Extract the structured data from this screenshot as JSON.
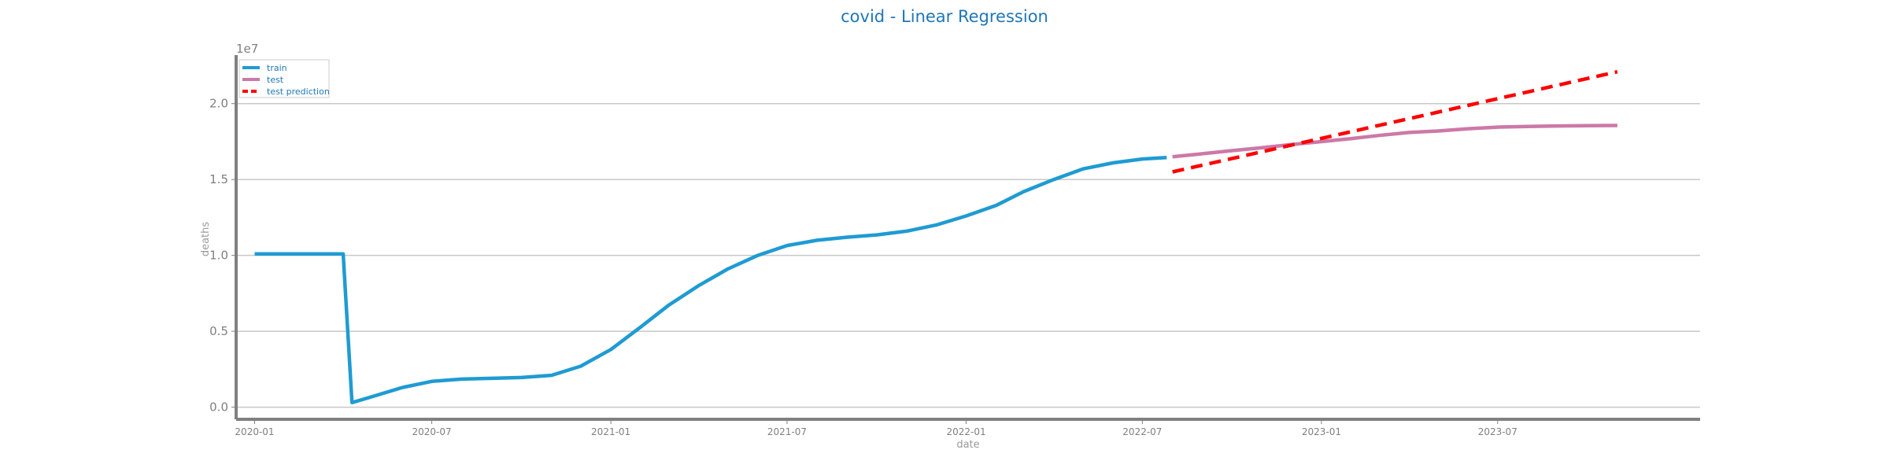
{
  "chart_data": {
    "type": "line",
    "title": "covid - Linear Regression",
    "xlabel": "date",
    "ylabel": "deaths",
    "y_offset_label": "1e7",
    "x_axis_type": "date",
    "xlim": [
      "2019-12-13",
      "2024-01-25"
    ],
    "ylim": [
      -0.08,
      2.32
    ],
    "y_multiplier": 10000000,
    "x_ticks": [
      "2020-01",
      "2020-07",
      "2021-01",
      "2021-07",
      "2022-01",
      "2022-07",
      "2023-01",
      "2023-07"
    ],
    "y_ticks": [
      "0.0",
      "0.5",
      "1.0",
      "1.5",
      "2.0"
    ],
    "y_tick_values": [
      0.0,
      0.5,
      1.0,
      1.5,
      2.0
    ],
    "grid": "horizontal",
    "legend_position": "top-left",
    "series": [
      {
        "name": "train",
        "color": "#1f9bd2",
        "style": "solid",
        "points": [
          [
            "2020-01-01",
            1.01
          ],
          [
            "2020-04-01",
            1.01
          ],
          [
            "2020-04-10",
            0.03
          ],
          [
            "2020-05-01",
            0.07
          ],
          [
            "2020-06-01",
            0.13
          ],
          [
            "2020-07-01",
            0.17
          ],
          [
            "2020-08-01",
            0.185
          ],
          [
            "2020-09-01",
            0.19
          ],
          [
            "2020-10-01",
            0.195
          ],
          [
            "2020-11-01",
            0.21
          ],
          [
            "2020-12-01",
            0.27
          ],
          [
            "2021-01-01",
            0.38
          ],
          [
            "2021-02-01",
            0.53
          ],
          [
            "2021-03-01",
            0.67
          ],
          [
            "2021-04-01",
            0.8
          ],
          [
            "2021-05-01",
            0.91
          ],
          [
            "2021-06-01",
            1.0
          ],
          [
            "2021-07-01",
            1.065
          ],
          [
            "2021-08-01",
            1.1
          ],
          [
            "2021-09-01",
            1.12
          ],
          [
            "2021-10-01",
            1.135
          ],
          [
            "2021-11-01",
            1.16
          ],
          [
            "2021-12-01",
            1.2
          ],
          [
            "2022-01-01",
            1.26
          ],
          [
            "2022-02-01",
            1.33
          ],
          [
            "2022-03-01",
            1.42
          ],
          [
            "2022-04-01",
            1.5
          ],
          [
            "2022-05-01",
            1.57
          ],
          [
            "2022-06-01",
            1.61
          ],
          [
            "2022-07-01",
            1.635
          ],
          [
            "2022-07-26",
            1.645
          ]
        ]
      },
      {
        "name": "test",
        "color": "#cc79a7",
        "style": "solid",
        "points": [
          [
            "2022-08-01",
            1.65
          ],
          [
            "2022-09-01",
            1.67
          ],
          [
            "2022-10-01",
            1.69
          ],
          [
            "2022-11-01",
            1.71
          ],
          [
            "2022-12-01",
            1.73
          ],
          [
            "2023-01-01",
            1.75
          ],
          [
            "2023-02-01",
            1.77
          ],
          [
            "2023-03-01",
            1.79
          ],
          [
            "2023-04-01",
            1.81
          ],
          [
            "2023-05-01",
            1.82
          ],
          [
            "2023-06-01",
            1.835
          ],
          [
            "2023-07-01",
            1.845
          ],
          [
            "2023-08-01",
            1.85
          ],
          [
            "2023-09-01",
            1.853
          ],
          [
            "2023-10-01",
            1.855
          ],
          [
            "2023-11-01",
            1.856
          ]
        ]
      },
      {
        "name": "test prediction",
        "color": "#ff0000",
        "style": "dashed",
        "points": [
          [
            "2022-08-01",
            1.55
          ],
          [
            "2023-11-01",
            2.21
          ]
        ]
      }
    ]
  }
}
